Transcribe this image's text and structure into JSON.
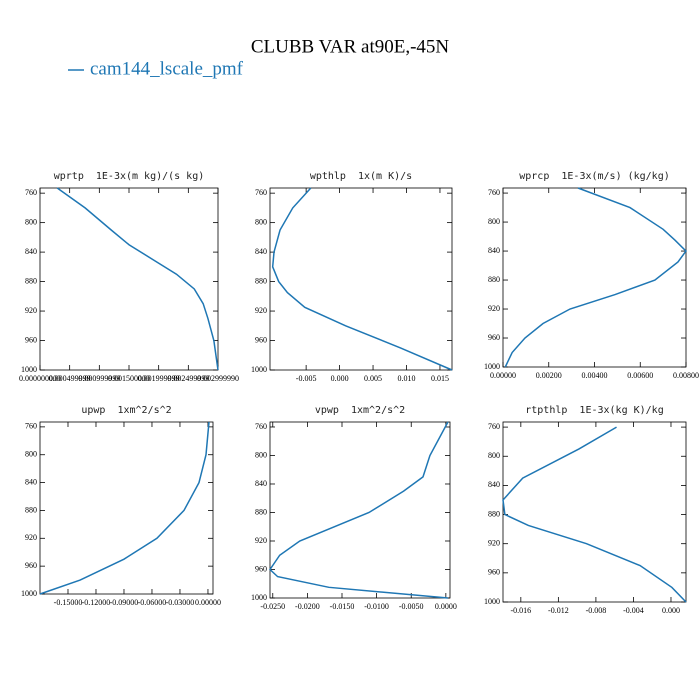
{
  "title": "CLUBB VAR at90E,-45N",
  "legend": {
    "name": "cam144_lscale_pmf",
    "color": "#1f77b4"
  },
  "chart_data": [
    {
      "type": "line",
      "title": "wprtp  1E-3x(m kg)/(s kg)",
      "color": "#1f77b4",
      "levels": [
        753,
        780,
        810,
        830,
        850,
        870,
        890,
        910,
        930,
        960,
        1000
      ],
      "values": [
        0.00029,
        0.00076,
        0.0012,
        0.0015,
        0.0019,
        0.0023,
        0.0026,
        0.00275,
        0.00283,
        0.00293,
        0.003
      ],
      "xlim": [
        0,
        0.003
      ],
      "xticks": [
        {
          "value": 0,
          "label": "0.000000000"
        },
        {
          "value": 0.0005,
          "label": "0.000499999"
        },
        {
          "value": 0.001,
          "label": "0.000999999"
        },
        {
          "value": 0.0015,
          "label": "0.001500000"
        },
        {
          "value": 0.002,
          "label": "0.001999999"
        },
        {
          "value": 0.0025,
          "label": "0.002499999"
        },
        {
          "value": 0.003,
          "label": "0.002999990"
        }
      ],
      "ylim": [
        753,
        1000
      ],
      "y_inverted": true,
      "yticks": [
        760,
        800,
        840,
        880,
        920,
        960,
        1000
      ]
    },
    {
      "type": "line",
      "title": "wpthlp  1x(m K)/s",
      "color": "#1f77b4",
      "levels": [
        753,
        780,
        810,
        840,
        860,
        880,
        895,
        915,
        940,
        970,
        1000
      ],
      "values": [
        -0.0043,
        -0.007,
        -0.0089,
        -0.0098,
        -0.01,
        -0.0091,
        -0.0078,
        -0.0052,
        0.0009,
        0.0091,
        0.0168
      ],
      "xlim": [
        -0.0104,
        0.0168
      ],
      "xticks": [
        {
          "value": -0.005,
          "label": "-0.005"
        },
        {
          "value": 0,
          "label": "0.000"
        },
        {
          "value": 0.005,
          "label": "0.005"
        },
        {
          "value": 0.01,
          "label": "0.010"
        },
        {
          "value": 0.015,
          "label": "0.015"
        }
      ],
      "ylim": [
        753,
        1000
      ],
      "y_inverted": true,
      "yticks": [
        760,
        800,
        840,
        880,
        920,
        960,
        1000
      ]
    },
    {
      "type": "line",
      "title": "wprcp  1E-3x(m/s) (kg/kg)",
      "color": "#1f77b4",
      "levels": [
        753,
        780,
        810,
        825,
        840,
        855,
        880,
        900,
        920,
        940,
        960,
        980,
        1000
      ],
      "values": [
        0.00328,
        0.00555,
        0.007,
        0.00752,
        0.008,
        0.00765,
        0.00664,
        0.0049,
        0.00293,
        0.00175,
        0.00096,
        0.0004,
        0.0001
      ],
      "xlim": [
        0,
        0.008
      ],
      "xticks": [
        {
          "value": 0,
          "label": "0.00000"
        },
        {
          "value": 0.002,
          "label": "0.00200"
        },
        {
          "value": 0.004,
          "label": "0.00400"
        },
        {
          "value": 0.006,
          "label": "0.00600"
        },
        {
          "value": 0.008,
          "label": "0.00800"
        }
      ],
      "ylim": [
        753,
        1000
      ],
      "y_inverted": true,
      "yticks": [
        760,
        800,
        840,
        880,
        920,
        960,
        1000
      ]
    },
    {
      "type": "line",
      "title": "upwp  1xm^2/s^2",
      "color": "#1f77b4",
      "levels": [
        753,
        800,
        840,
        880,
        920,
        950,
        980,
        1000
      ],
      "values": [
        0.0011,
        -0.0021,
        -0.0096,
        -0.0257,
        -0.0547,
        -0.09,
        -0.137,
        -0.18
      ],
      "xlim": [
        -0.18,
        0.0054
      ],
      "xticks": [
        {
          "value": -0.15,
          "label": "-0.15000"
        },
        {
          "value": -0.12,
          "label": "-0.12000"
        },
        {
          "value": -0.09,
          "label": "-0.09000"
        },
        {
          "value": -0.06,
          "label": "-0.06000"
        },
        {
          "value": -0.03,
          "label": "-0.03000"
        },
        {
          "value": 0,
          "label": "0.00000"
        }
      ],
      "ylim": [
        753,
        1000
      ],
      "y_inverted": true,
      "yticks": [
        760,
        800,
        840,
        880,
        920,
        960,
        1000
      ]
    },
    {
      "type": "line",
      "title": "vpwp  1xm^2/s^2",
      "color": "#1f77b4",
      "levels": [
        753,
        800,
        830,
        850,
        880,
        920,
        940,
        960,
        970,
        985,
        1000
      ],
      "values": [
        0.0003,
        -0.0023,
        -0.0033,
        -0.0061,
        -0.0111,
        -0.0211,
        -0.024,
        -0.0254,
        -0.0243,
        -0.0169,
        0.0003
      ],
      "xlim": [
        -0.0254,
        0.0006
      ],
      "xticks": [
        {
          "value": -0.025,
          "label": "-0.0250"
        },
        {
          "value": -0.02,
          "label": "-0.0200"
        },
        {
          "value": -0.015,
          "label": "-0.0150"
        },
        {
          "value": -0.01,
          "label": "-0.0100"
        },
        {
          "value": -0.005,
          "label": "-0.0050"
        },
        {
          "value": 0,
          "label": "0.0000"
        }
      ],
      "ylim": [
        753,
        1000
      ],
      "y_inverted": true,
      "yticks": [
        760,
        800,
        840,
        880,
        920,
        960,
        1000
      ]
    },
    {
      "type": "line",
      "title": "rtpthlp  1E-3x(kg K)/kg",
      "color": "#1f77b4",
      "levels": [
        760,
        790,
        830,
        860,
        880,
        895,
        920,
        950,
        980,
        1000
      ],
      "values": [
        -0.0058,
        -0.0098,
        -0.0158,
        -0.0179,
        -0.0177,
        -0.0152,
        -0.009,
        -0.0033,
        0.0001,
        0.0016
      ],
      "xlim": [
        -0.0179,
        0.0016
      ],
      "xticks": [
        {
          "value": -0.016,
          "label": "-0.016"
        },
        {
          "value": -0.012,
          "label": "-0.012"
        },
        {
          "value": -0.008,
          "label": "-0.008"
        },
        {
          "value": -0.004,
          "label": "-0.004"
        },
        {
          "value": 0,
          "label": "0.000"
        }
      ],
      "ylim": [
        753,
        1000
      ],
      "y_inverted": true,
      "yticks": [
        760,
        800,
        840,
        880,
        920,
        960,
        1000
      ]
    }
  ]
}
